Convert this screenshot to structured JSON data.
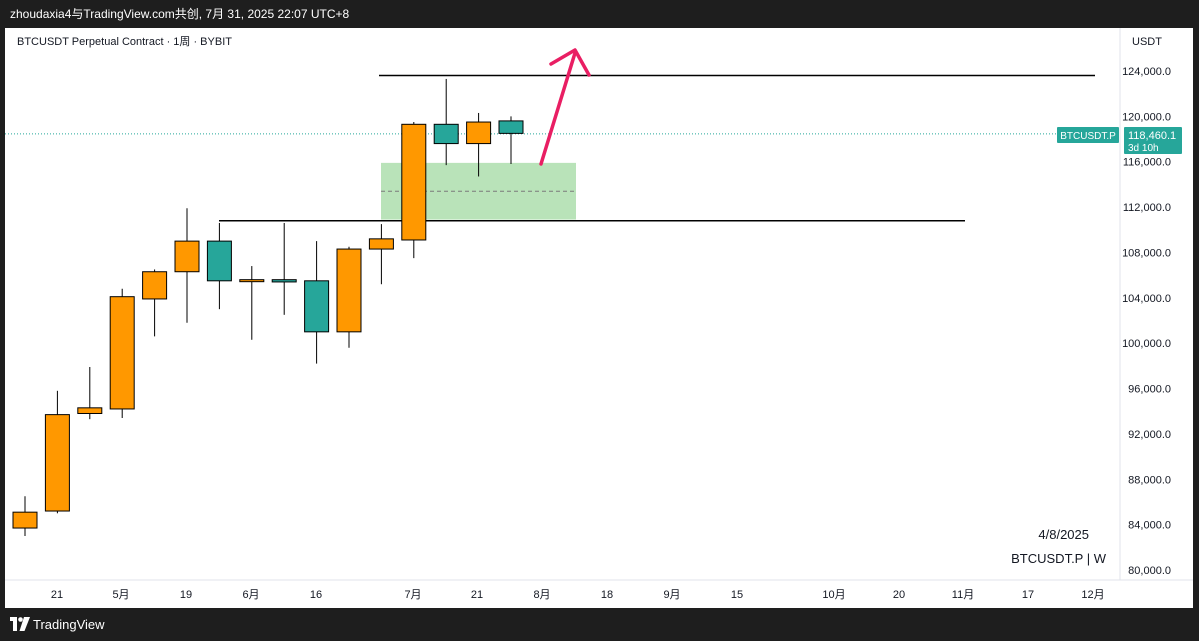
{
  "header": {
    "share_text": "zhoudaxia4与TradingView.com共创, 7月 31, 2025 22:07 UTC+8"
  },
  "footer": {
    "brand": "TradingView",
    "brand_icon": "tradingview-logo-icon"
  },
  "chart": {
    "symbol_title": "BTCUSDT Perpetual Contract · 1周 · BYBIT",
    "currency": "USDT",
    "date_stamp": "4/8/2025",
    "watermark": "BTCUSDT.P | W",
    "last_price_tag": {
      "symbol": "BTCUSDT.P",
      "price": "118,460.1",
      "countdown": "3d 10h"
    }
  },
  "colors": {
    "up": "#ff9800",
    "down": "#26a69a",
    "zone": "#b9e3b9",
    "arrow": "#e91e63",
    "price_line": "#26a69a"
  },
  "chart_data": {
    "type": "candlestick",
    "title": "BTCUSDT Perpetual Contract · 1周 · BYBIT",
    "y_unit": "USDT",
    "ylim": [
      79200,
      127700
    ],
    "y_ticks": [
      "124,000.0",
      "120,000.0",
      "116,000.0",
      "112,000.0",
      "108,000.0",
      "104,000.0",
      "100,000.0",
      "96,000.0",
      "92,000.0",
      "88,000.0",
      "84,000.0",
      "80,000.0"
    ],
    "x_ticks": [
      "21",
      "5月",
      "19",
      "6月",
      "16",
      "7月",
      "21",
      "8月",
      "18",
      "9月",
      "15",
      "10月",
      "20",
      "11月",
      "17",
      "12月"
    ],
    "candles": [
      {
        "o": 83700,
        "h": 86500,
        "l": 83000,
        "c": 85100
      },
      {
        "o": 85200,
        "h": 95800,
        "l": 85000,
        "c": 93700
      },
      {
        "o": 93800,
        "h": 97900,
        "l": 93300,
        "c": 94300
      },
      {
        "o": 94200,
        "h": 104800,
        "l": 93400,
        "c": 104100
      },
      {
        "o": 103900,
        "h": 106500,
        "l": 100600,
        "c": 106300
      },
      {
        "o": 106300,
        "h": 111900,
        "l": 101800,
        "c": 109000
      },
      {
        "o": 109000,
        "h": 110600,
        "l": 103000,
        "c": 105500
      },
      {
        "o": 105600,
        "h": 106800,
        "l": 100300,
        "c": 105600
      },
      {
        "o": 105600,
        "h": 110600,
        "l": 102500,
        "c": 105400
      },
      {
        "o": 105500,
        "h": 109000,
        "l": 98200,
        "c": 101000
      },
      {
        "o": 101000,
        "h": 108500,
        "l": 99600,
        "c": 108300
      },
      {
        "o": 108300,
        "h": 110500,
        "l": 105200,
        "c": 109200
      },
      {
        "o": 109100,
        "h": 119500,
        "l": 107500,
        "c": 119300
      },
      {
        "o": 119300,
        "h": 123300,
        "l": 115700,
        "c": 117600
      },
      {
        "o": 117600,
        "h": 120300,
        "l": 114700,
        "c": 119500
      },
      {
        "o": 119600,
        "h": 120000,
        "l": 115800,
        "c": 118500
      }
    ],
    "last_price": 118460.1,
    "annotations": {
      "resistance_line": 123600,
      "support_line": 110800,
      "zone": {
        "top": 115900,
        "bottom": 110900,
        "mid": 113400
      },
      "arrow": "up"
    }
  }
}
